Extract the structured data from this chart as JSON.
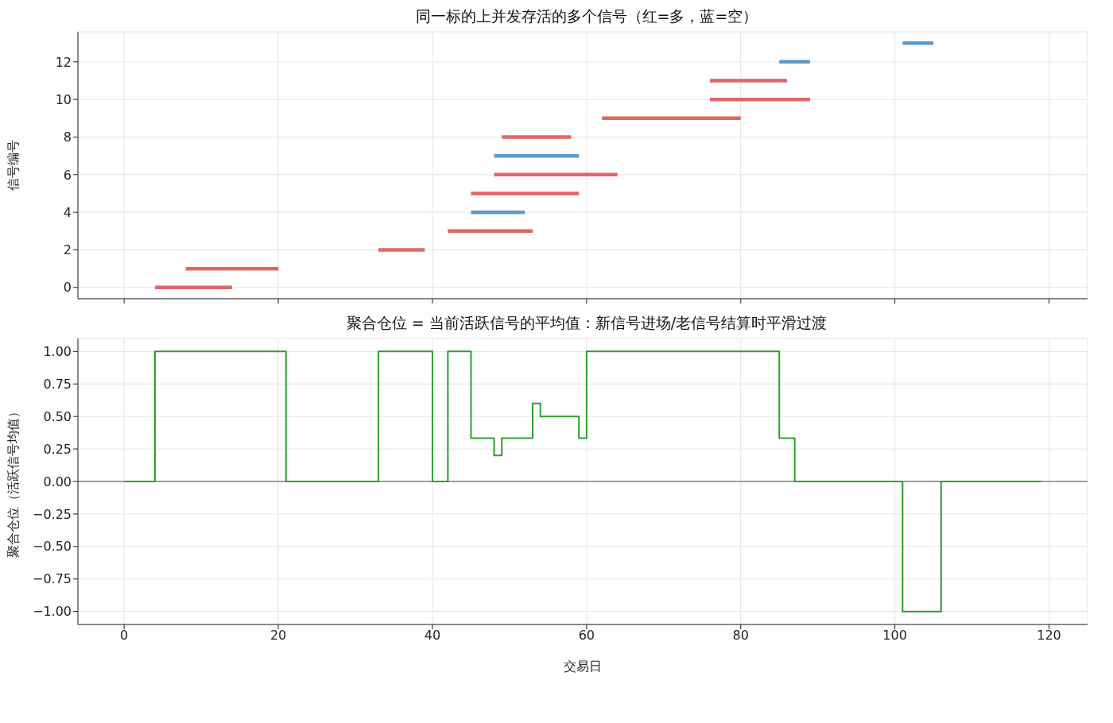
{
  "chart_data": [
    {
      "type": "line",
      "title": "同一标的上并发存活的多个信号（红=多，蓝=空）",
      "ylabel": "信号编号",
      "xlim": [
        -6,
        125
      ],
      "xticks": [
        0,
        20,
        40,
        60,
        80,
        100,
        120
      ],
      "ylim": [
        -0.6,
        13.6
      ],
      "yticks": [
        0,
        2,
        4,
        6,
        8,
        10,
        12
      ],
      "grid": true,
      "tick_labels": "y",
      "marker": "none",
      "line_style": "solid",
      "series": [
        {
          "x": [
            4,
            14
          ],
          "values": [
            0,
            0
          ],
          "color": "#e06666"
        },
        {
          "x": [
            8,
            20
          ],
          "values": [
            1,
            1
          ],
          "color": "#e06666"
        },
        {
          "x": [
            33,
            39
          ],
          "values": [
            2,
            2
          ],
          "color": "#e06666"
        },
        {
          "x": [
            42,
            53
          ],
          "values": [
            3,
            3
          ],
          "color": "#e06666"
        },
        {
          "x": [
            45,
            52
          ],
          "values": [
            4,
            4
          ],
          "color": "#5b9bcb"
        },
        {
          "x": [
            45,
            59
          ],
          "values": [
            5,
            5
          ],
          "color": "#e06666"
        },
        {
          "x": [
            48,
            64
          ],
          "values": [
            6,
            6
          ],
          "color": "#e06666"
        },
        {
          "x": [
            48,
            59
          ],
          "values": [
            7,
            7
          ],
          "color": "#5b9bcb"
        },
        {
          "x": [
            49,
            58
          ],
          "values": [
            8,
            8
          ],
          "color": "#e06666"
        },
        {
          "x": [
            62,
            80
          ],
          "values": [
            9,
            9
          ],
          "color": "#e06666"
        },
        {
          "x": [
            76,
            89
          ],
          "values": [
            10,
            10
          ],
          "color": "#e06666"
        },
        {
          "x": [
            76,
            86
          ],
          "values": [
            11,
            11
          ],
          "color": "#e06666"
        },
        {
          "x": [
            85,
            89
          ],
          "values": [
            12,
            12
          ],
          "color": "#5b9bcb"
        },
        {
          "x": [
            101,
            105
          ],
          "values": [
            13,
            13
          ],
          "color": "#5b9bcb"
        }
      ]
    },
    {
      "type": "step",
      "title": "聚合仓位 = 当前活跃信号的平均值：新信号进场/老信号结算时平滑过渡",
      "xlabel": "交易日",
      "ylabel": "聚合仓位（活跃信号均值）",
      "xlim": [
        -6,
        125
      ],
      "xticks": [
        0,
        20,
        40,
        60,
        80,
        100,
        120
      ],
      "ylim": [
        -1.1,
        1.1
      ],
      "yticks": [
        {
          "value": 1,
          "label": "1.00"
        },
        {
          "value": 0.75,
          "label": "0.75"
        },
        {
          "value": 0.5,
          "label": "0.50"
        },
        {
          "value": 0.25,
          "label": "0.25"
        },
        {
          "value": 0,
          "label": "0.00"
        },
        {
          "value": -0.25,
          "label": "−0.25"
        },
        {
          "value": -0.5,
          "label": "−0.50"
        },
        {
          "value": -0.75,
          "label": "−0.75"
        },
        {
          "value": -1,
          "label": "−1.00"
        }
      ],
      "grid": true,
      "marker": "none",
      "line_style": "solid",
      "ref_lines": [
        {
          "axis": "y",
          "value": 0,
          "color": "#808080"
        }
      ],
      "series": [
        {
          "x": [
            0,
            4,
            21,
            33,
            40,
            42,
            45,
            48,
            49,
            53,
            54,
            59,
            60,
            85,
            87,
            101,
            106,
            119
          ],
          "values": [
            0,
            1,
            0,
            1,
            0,
            1,
            0.333,
            0.2,
            0.333,
            0.6,
            0.5,
            0.333,
            1,
            0.333,
            0,
            -1,
            0,
            0
          ],
          "color": "#2ca02c"
        }
      ]
    }
  ]
}
